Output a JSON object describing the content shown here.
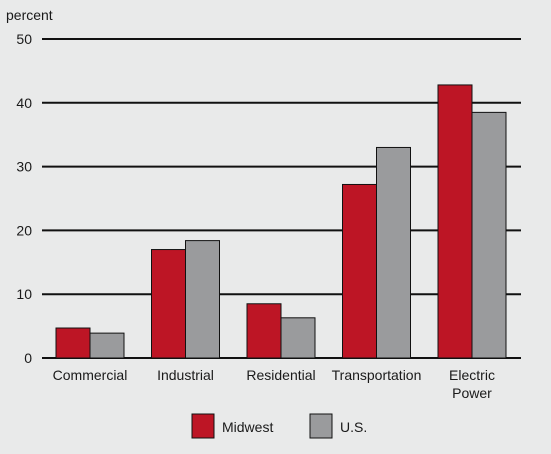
{
  "chart_data": {
    "type": "bar",
    "ylabel": "percent",
    "ylim": [
      0,
      50
    ],
    "yticks": [
      0,
      10,
      20,
      30,
      40,
      50
    ],
    "grid": true,
    "legend_position": "bottom-center",
    "categories": [
      "Commercial",
      "Industrial",
      "Residential",
      "Transportation",
      "Electric Power"
    ],
    "series": [
      {
        "name": "Midwest",
        "color": "#bd1525",
        "values": [
          4.7,
          17.0,
          8.5,
          27.2,
          42.8
        ]
      },
      {
        "name": "U.S.",
        "color": "#9a9b9d",
        "values": [
          3.9,
          18.4,
          6.3,
          33.0,
          38.5
        ]
      }
    ]
  }
}
